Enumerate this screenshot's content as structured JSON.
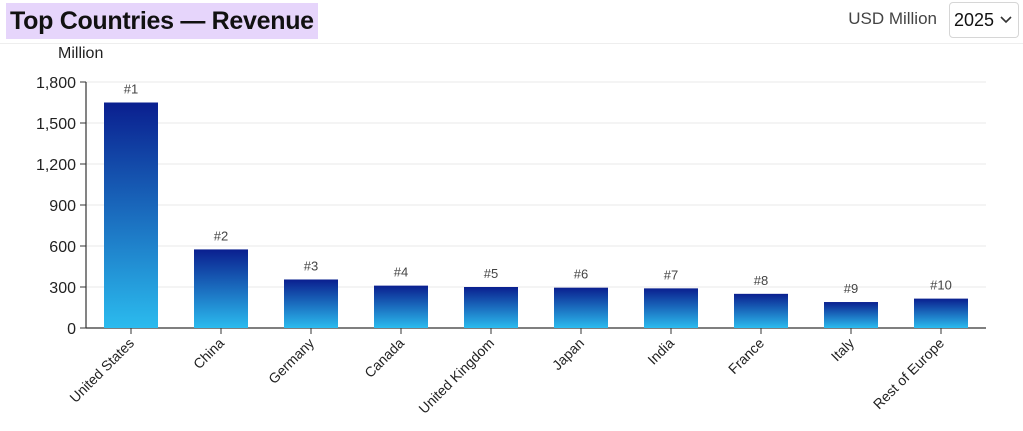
{
  "header": {
    "title": "Top Countries — Revenue",
    "title_highlight_color": "#e6d5fb",
    "unit_label": "USD Million",
    "year_select": {
      "value": "2025",
      "icon": "chevron-down-icon"
    }
  },
  "chart_data": {
    "type": "bar",
    "title": "Top Countries — Revenue",
    "ylabel": "Million",
    "xlabel": "",
    "categories": [
      "United States",
      "China",
      "Germany",
      "Canada",
      "United Kingdom",
      "Japan",
      "India",
      "France",
      "Italy",
      "Rest of Europe"
    ],
    "values": [
      1650,
      575,
      355,
      310,
      300,
      295,
      290,
      250,
      190,
      215
    ],
    "rank_labels": [
      "#1",
      "#2",
      "#3",
      "#4",
      "#5",
      "#6",
      "#7",
      "#8",
      "#9",
      "#10"
    ],
    "ylim": [
      0,
      1800
    ],
    "yticks": [
      0,
      300,
      600,
      900,
      1200,
      1500,
      1800
    ],
    "ytick_labels": [
      "0",
      "300",
      "600",
      "900",
      "1,200",
      "1,500",
      "1,800"
    ],
    "grid": true,
    "legend": "none",
    "colors": {
      "bar_top": "#0a1f8f",
      "bar_bottom": "#2bbbee",
      "grid": "#e8e8e8",
      "axis": "#333333"
    }
  }
}
